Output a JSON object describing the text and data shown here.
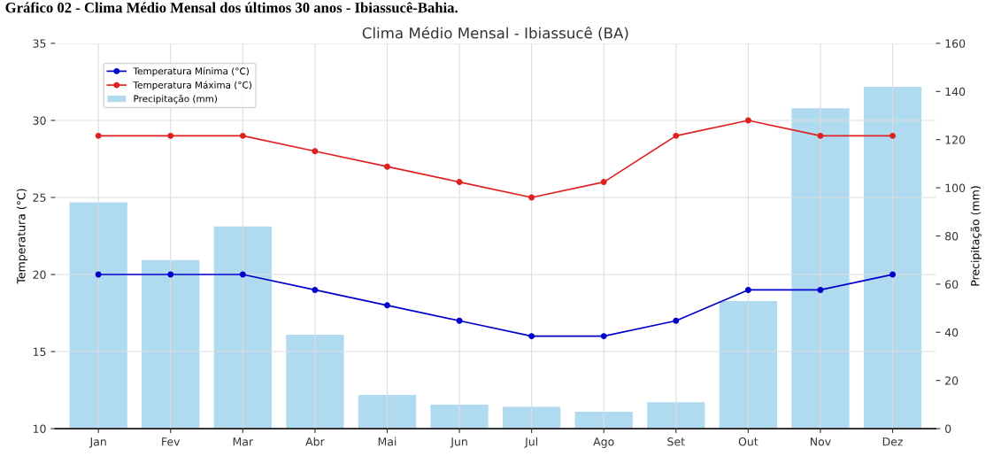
{
  "chart_data": {
    "type": "line",
    "title": "Gráfico 02 - Clima Médio Mensal dos últimos 30 anos - Ibiassucê-Bahia.",
    "subtitle": "Clima Médio Mensal - Ibiassucê (BA)",
    "ylabel": "Temperatura (°C)",
    "y2label": "Precipitação (mm)",
    "categories": [
      "Jan",
      "Fev",
      "Mar",
      "Abr",
      "Mai",
      "Jun",
      "Jul",
      "Ago",
      "Set",
      "Out",
      "Nov",
      "Dez"
    ],
    "series": [
      {
        "name": "Temperatura Mínima (°C)",
        "color": "#0000cc",
        "values": [
          20,
          20,
          20,
          19,
          18,
          17,
          16,
          16,
          17,
          19,
          19,
          20
        ]
      },
      {
        "name": "Temperatura Máxima (°C)",
        "color": "#e02020",
        "values": [
          29,
          29,
          29,
          28,
          27,
          26,
          25,
          26,
          29,
          30,
          29,
          29
        ]
      },
      {
        "name": "Precipitação (mm)",
        "type": "bar",
        "axis": "y2",
        "color": "#b0daf0",
        "values": [
          94,
          70,
          84,
          39,
          14,
          10,
          9,
          7,
          11,
          53,
          133,
          142
        ]
      }
    ],
    "ylim": [
      10,
      35
    ],
    "yticks": [
      10,
      15,
      20,
      25,
      30,
      35
    ],
    "y2lim": [
      0,
      160
    ],
    "y2ticks": [
      0,
      20,
      40,
      60,
      80,
      100,
      120,
      140,
      160
    ],
    "grid": true,
    "legend": "top left",
    "marker": "circle",
    "line_style": "solid"
  }
}
